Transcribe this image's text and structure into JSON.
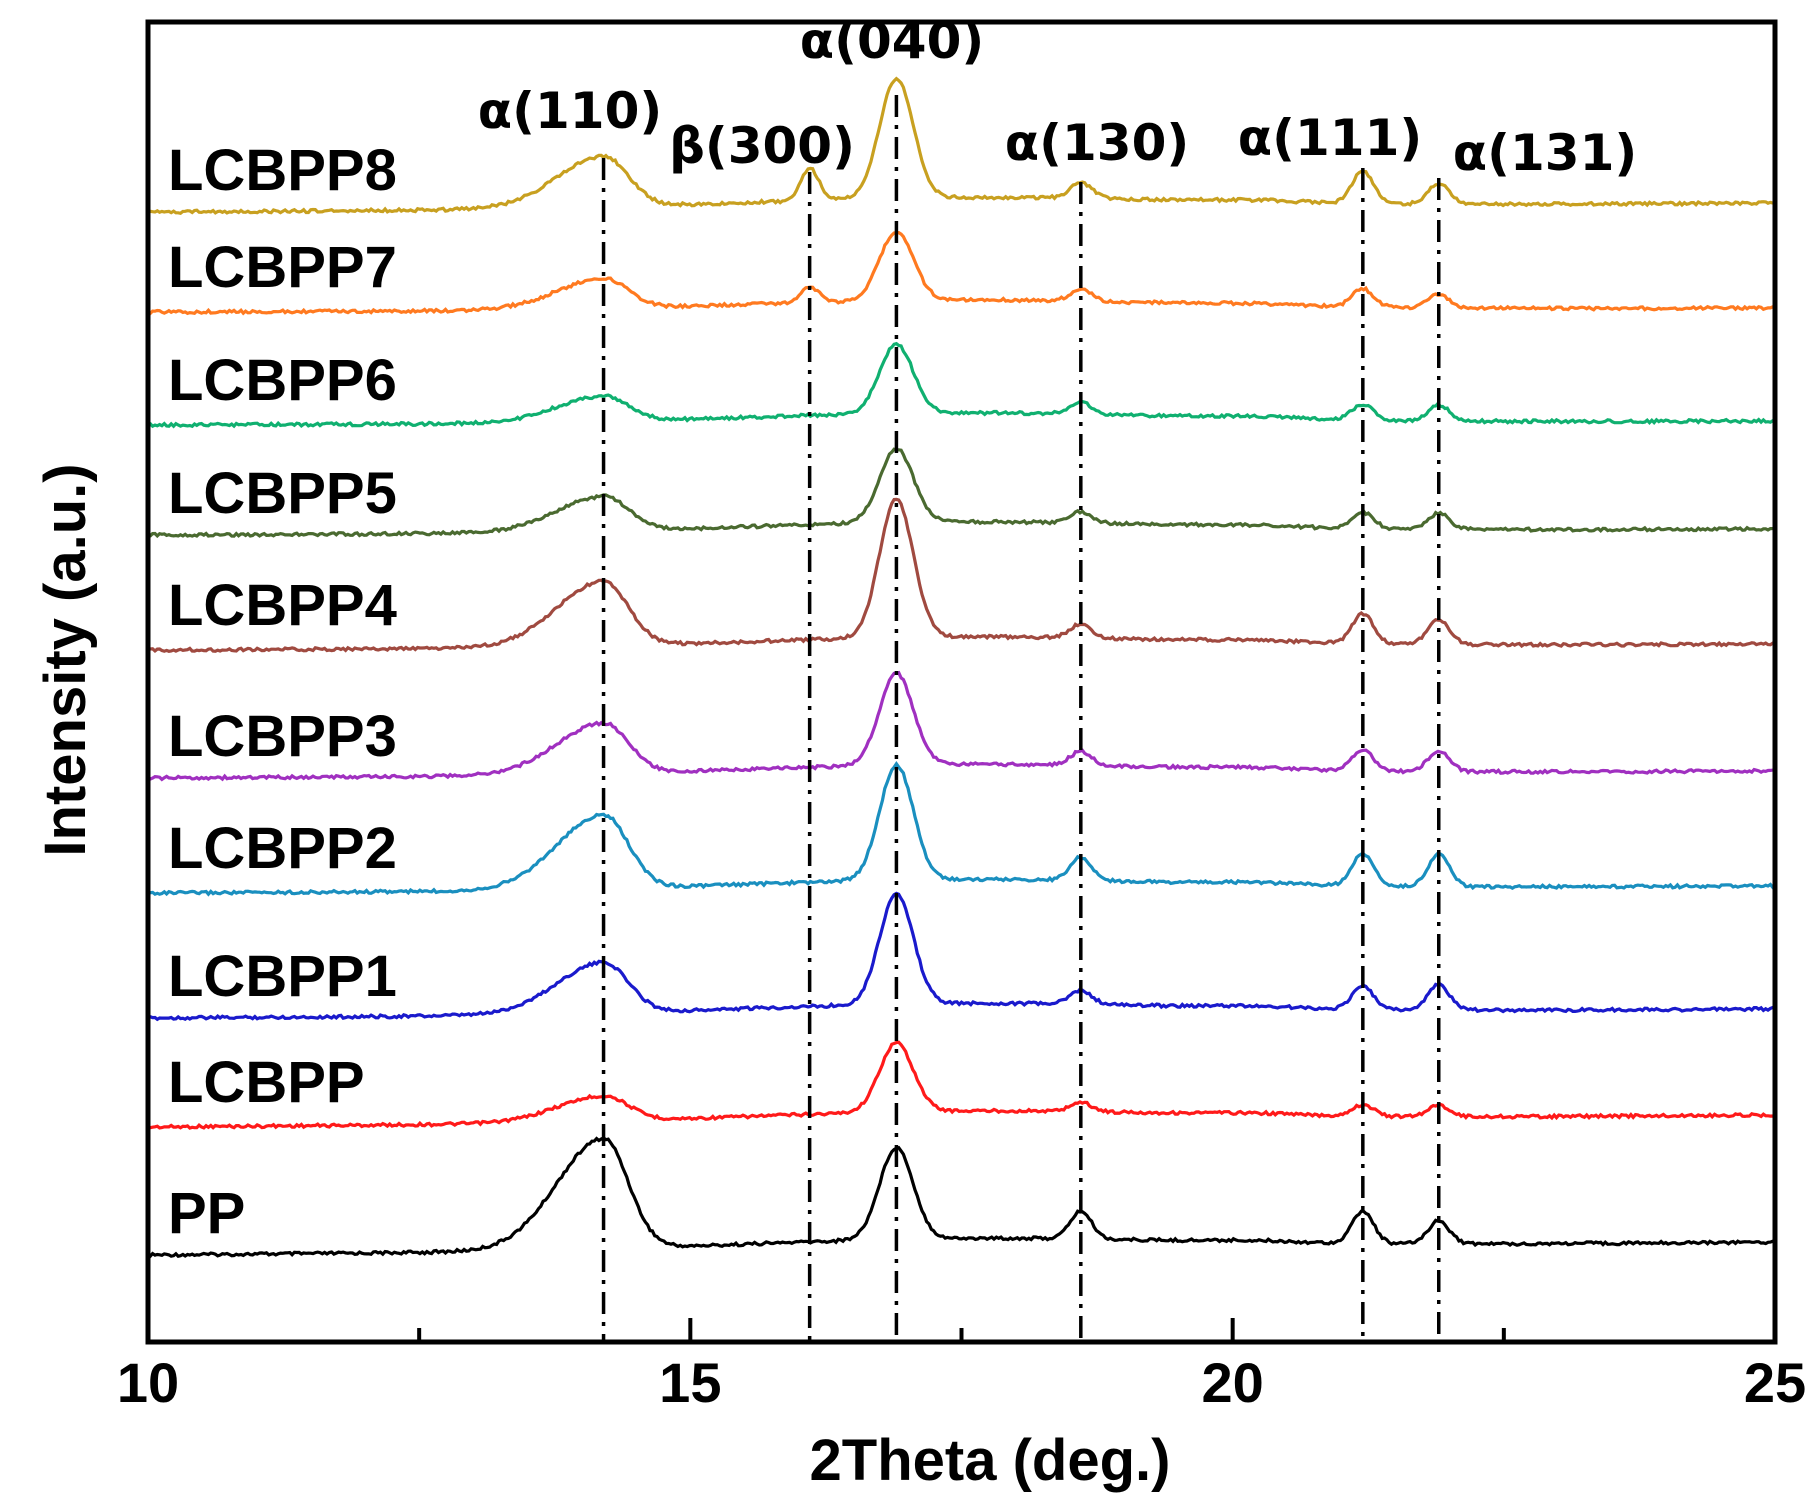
{
  "chart_data": {
    "type": "line",
    "xlabel": "2Theta (deg.)",
    "ylabel": "Intensity (a.u.)",
    "xlim": [
      10,
      25
    ],
    "x_ticks": [
      "10",
      "15",
      "20",
      "25"
    ],
    "y_ticks": "none",
    "grid": false,
    "legend": "inline labels at left of each curve",
    "peak_markers": [
      {
        "label": "α(110)",
        "x": 14.2
      },
      {
        "label": "β(300)",
        "x": 16.1
      },
      {
        "label": "α(040)",
        "x": 16.9
      },
      {
        "label": "α(130)",
        "x": 18.6
      },
      {
        "label": "α(111)",
        "x": 21.2
      },
      {
        "label": "α(131)",
        "x": 21.9
      }
    ],
    "series": [
      {
        "name": "PP",
        "color": "#000000",
        "peaks": {
          "14.2": 2.4,
          "16.1": 0,
          "16.9": 2.0,
          "18.6": 0.6,
          "21.2": 0.7,
          "21.9": 0.5
        }
      },
      {
        "name": "LCBPP",
        "color": "#ff1a1a",
        "peaks": {
          "14.2": 0.55,
          "16.1": 0,
          "16.9": 1.5,
          "18.6": 0.2,
          "21.2": 0.25,
          "21.9": 0.25
        }
      },
      {
        "name": "LCBPP1",
        "color": "#1a1acc",
        "peaks": {
          "14.2": 1.1,
          "16.1": 0,
          "16.9": 2.4,
          "18.6": 0.3,
          "21.2": 0.5,
          "21.9": 0.55
        }
      },
      {
        "name": "LCBPP2",
        "color": "#1a8fbf",
        "peaks": {
          "14.2": 1.6,
          "16.1": 0,
          "16.9": 2.5,
          "18.6": 0.5,
          "21.2": 0.7,
          "21.9": 0.7
        }
      },
      {
        "name": "LCBPP3",
        "color": "#a030c0",
        "peaks": {
          "14.2": 1.1,
          "16.1": 0,
          "16.9": 2.0,
          "18.6": 0.3,
          "21.2": 0.45,
          "21.9": 0.45
        }
      },
      {
        "name": "LCBPP4",
        "color": "#a04a40",
        "peaks": {
          "14.2": 1.4,
          "16.1": 0,
          "16.9": 3.0,
          "18.6": 0.3,
          "21.2": 0.65,
          "21.9": 0.55
        }
      },
      {
        "name": "LCBPP5",
        "color": "#4a6a30",
        "peaks": {
          "14.2": 0.75,
          "16.1": 0,
          "16.9": 1.6,
          "18.6": 0.25,
          "21.2": 0.35,
          "21.9": 0.35
        }
      },
      {
        "name": "LCBPP6",
        "color": "#10b070",
        "peaks": {
          "14.2": 0.55,
          "16.1": 0,
          "16.9": 1.5,
          "18.6": 0.25,
          "21.2": 0.35,
          "21.9": 0.35
        }
      },
      {
        "name": "LCBPP7",
        "color": "#ff7a20",
        "peaks": {
          "14.2": 0.65,
          "16.1": 0.35,
          "16.9": 1.5,
          "18.6": 0.25,
          "21.2": 0.4,
          "21.9": 0.3
        }
      },
      {
        "name": "LCBPP8",
        "color": "#c8a020",
        "peaks": {
          "14.2": 1.1,
          "16.1": 0.7,
          "16.9": 2.6,
          "18.6": 0.35,
          "21.2": 0.7,
          "21.9": 0.45
        }
      }
    ]
  }
}
